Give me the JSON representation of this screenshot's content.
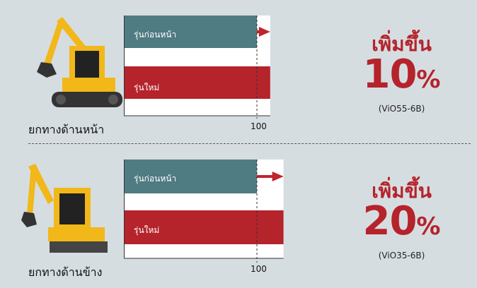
{
  "colors": {
    "old_bar": "#4f7b82",
    "new_bar": "#b5232b",
    "arrow": "#c0242d",
    "accent": "#b5232b"
  },
  "chart_data": [
    {
      "type": "bar",
      "caption": "ยกทางด้านหน้า",
      "categories": [
        "รุ่นก่อนหน้า",
        "รุ่นใหม่"
      ],
      "values": [
        100,
        110
      ],
      "xlim": [
        0,
        110
      ],
      "xticks": [
        "100"
      ],
      "increase_label": "เพิ่มขึ้น",
      "increase_value": "10",
      "increase_unit": "%",
      "model": "(ViO55-6B)"
    },
    {
      "type": "bar",
      "caption": "ยกทางด้านข้าง",
      "categories": [
        "รุ่นก่อนหน้า",
        "รุ่นใหม่"
      ],
      "values": [
        100,
        120
      ],
      "xlim": [
        0,
        120
      ],
      "xticks": [
        "100"
      ],
      "increase_label": "เพิ่มขึ้น",
      "increase_value": "20",
      "increase_unit": "%",
      "model": "(ViO35-6B)"
    }
  ]
}
